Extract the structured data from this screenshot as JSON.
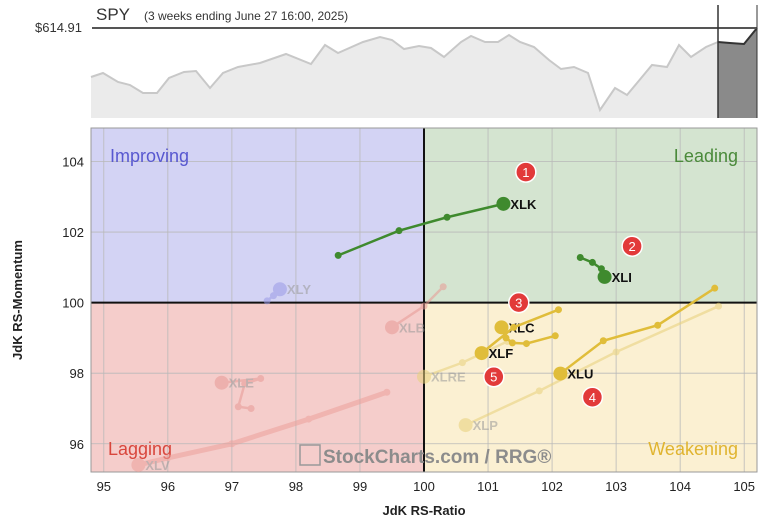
{
  "header": {
    "symbol": "SPY",
    "period": "(3 weeks ending June 27 16:00, 2025)",
    "price": "$614.91"
  },
  "chart_data": {
    "type": "scatter",
    "subtype": "relative-rotation-graph",
    "xlabel": "JdK RS-Ratio",
    "ylabel": "JdK RS-Momentum",
    "xlim": [
      94.8,
      105.2
    ],
    "ylim": [
      95.2,
      104.95
    ],
    "x_ticks": [
      "95",
      "96",
      "97",
      "98",
      "99",
      "100",
      "101",
      "102",
      "103",
      "104",
      "105"
    ],
    "y_ticks": [
      "96",
      "98",
      "100",
      "102",
      "104"
    ],
    "grid": true,
    "quadrants": [
      {
        "name": "Improving",
        "color": "#5858d0",
        "fill": "#d3d3f4"
      },
      {
        "name": "Leading",
        "color": "#4a8a3a",
        "fill": "#d4e4d0"
      },
      {
        "name": "Lagging",
        "color": "#d8463c",
        "fill": "#f5cdcb"
      },
      {
        "name": "Weakening",
        "color": "#e0b430",
        "fill": "#fbf0d2"
      }
    ],
    "series": [
      {
        "name": "XLK",
        "color": "#3f8a2e",
        "faded": false,
        "points": [
          [
            98.66,
            101.34
          ],
          [
            99.61,
            102.04
          ],
          [
            100.36,
            102.42
          ],
          [
            101.24,
            102.8
          ]
        ]
      },
      {
        "name": "XLI",
        "color": "#3f8a2e",
        "faded": false,
        "points": [
          [
            102.44,
            101.28
          ],
          [
            102.63,
            101.14
          ],
          [
            102.77,
            100.96
          ],
          [
            102.82,
            100.73
          ]
        ]
      },
      {
        "name": "XLC",
        "color": "#e0bd3a",
        "faded": false,
        "points": [
          [
            102.05,
            99.06
          ],
          [
            101.6,
            98.84
          ],
          [
            101.38,
            98.86
          ],
          [
            101.28,
            99.0
          ],
          [
            101.21,
            99.3
          ]
        ]
      },
      {
        "name": "XLF",
        "color": "#e0bd3a",
        "faded": false,
        "points": [
          [
            102.1,
            99.8
          ],
          [
            101.4,
            99.3
          ],
          [
            100.9,
            98.57
          ]
        ]
      },
      {
        "name": "XLU",
        "color": "#e0bd3a",
        "faded": false,
        "points": [
          [
            104.54,
            100.41
          ],
          [
            103.65,
            99.36
          ],
          [
            102.8,
            98.92
          ],
          [
            102.13,
            97.99
          ]
        ]
      },
      {
        "name": "XLP",
        "color": "#e8d17a",
        "faded": true,
        "points": [
          [
            104.6,
            99.9
          ],
          [
            103.0,
            98.6
          ],
          [
            101.8,
            97.5
          ],
          [
            100.65,
            96.53
          ]
        ]
      },
      {
        "name": "XLRE",
        "color": "#e8d17a",
        "faded": true,
        "points": [
          [
            101.3,
            98.9
          ],
          [
            100.6,
            98.3
          ],
          [
            100.0,
            97.9
          ]
        ]
      },
      {
        "name": "XLB",
        "color": "#e89a95",
        "faded": true,
        "points": [
          [
            100.3,
            100.45
          ],
          [
            100.0,
            99.9
          ],
          [
            99.5,
            99.3
          ]
        ]
      },
      {
        "name": "XLY",
        "color": "#9a9ae6",
        "faded": true,
        "points": [
          [
            97.55,
            100.05
          ],
          [
            97.65,
            100.2
          ],
          [
            97.75,
            100.38
          ]
        ]
      },
      {
        "name": "XLE",
        "color": "#e89a95",
        "faded": true,
        "points": [
          [
            97.3,
            97.0
          ],
          [
            97.1,
            97.05
          ],
          [
            97.2,
            97.7
          ],
          [
            97.45,
            97.85
          ],
          [
            96.84,
            97.73
          ]
        ]
      },
      {
        "name": "XLV",
        "color": "#eca09b",
        "faded": true,
        "points": [
          [
            99.42,
            97.46
          ],
          [
            98.2,
            96.7
          ],
          [
            97.0,
            96.0
          ],
          [
            96.0,
            95.6
          ],
          [
            95.54,
            95.4
          ]
        ]
      }
    ],
    "annotations": [
      {
        "label": "1",
        "x": 101.59,
        "y": 103.7
      },
      {
        "label": "2",
        "x": 103.25,
        "y": 101.6
      },
      {
        "label": "3",
        "x": 101.48,
        "y": 100.0
      },
      {
        "label": "4",
        "x": 102.63,
        "y": 97.32
      },
      {
        "label": "5",
        "x": 101.09,
        "y": 97.9
      }
    ],
    "watermark": "StockCharts.com / RRG®"
  }
}
